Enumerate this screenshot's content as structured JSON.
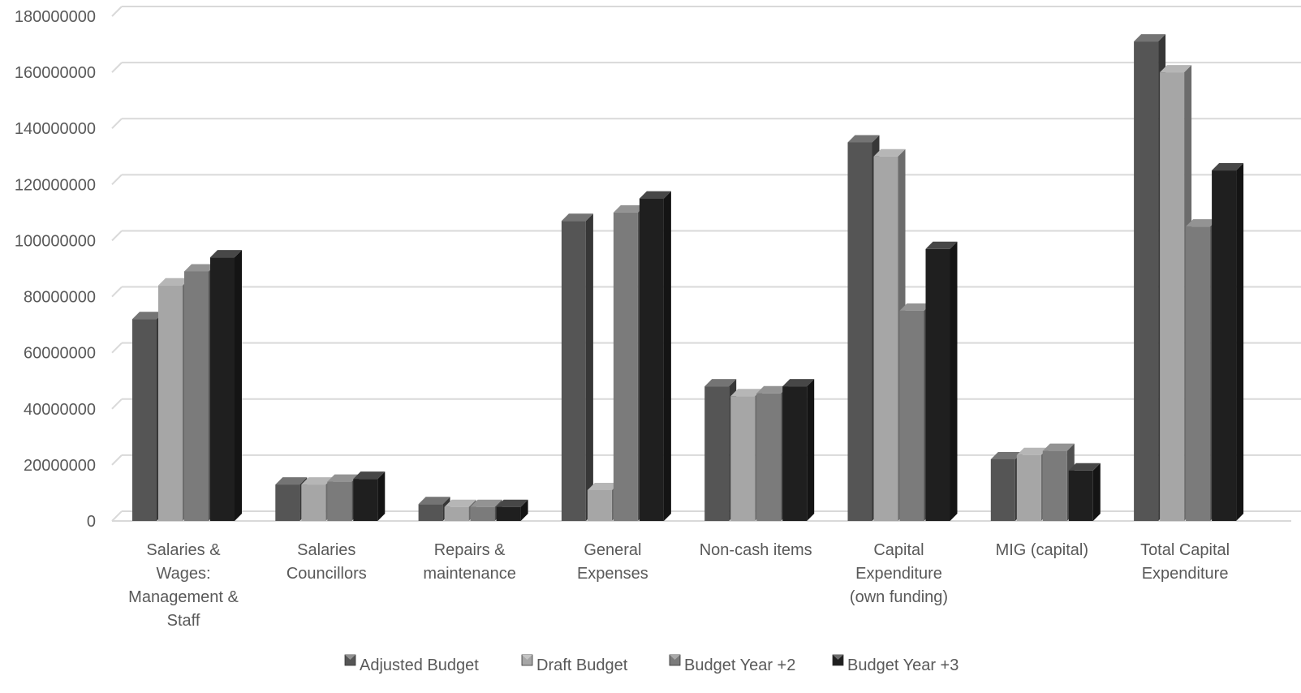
{
  "chart_data": {
    "type": "bar",
    "title": "",
    "xlabel": "",
    "ylabel": "",
    "ylim": [
      0,
      180000000
    ],
    "y_ticks": [
      "0",
      "20000000",
      "40000000",
      "60000000",
      "80000000",
      "100000000",
      "120000000",
      "140000000",
      "160000000",
      "180000000"
    ],
    "y_tick_values": [
      0,
      20000000,
      40000000,
      60000000,
      80000000,
      100000000,
      120000000,
      140000000,
      160000000,
      180000000
    ],
    "grid": true,
    "style": "3d-clustered-column",
    "legend_position": "bottom",
    "categories": [
      "Salaries & Wages: Management & Staff",
      "Salaries Councillors",
      "Repairs & maintenance",
      "General Expenses",
      "Non-cash items",
      "Capital Expenditure (own funding)",
      "MIG (capital)",
      "Total Capital Expenditure"
    ],
    "category_lines": [
      [
        "Salaries &",
        "Wages:",
        "Management &",
        "Staff"
      ],
      [
        "Salaries",
        "Councillors"
      ],
      [
        "Repairs &",
        "maintenance"
      ],
      [
        "General",
        "Expenses"
      ],
      [
        "Non-cash items"
      ],
      [
        "Capital",
        "Expenditure",
        "(own funding)"
      ],
      [
        "MIG (capital)"
      ],
      [
        "Total Capital",
        "Expenditure"
      ]
    ],
    "series": [
      {
        "name": "Adjusted Budget",
        "color": "#555555",
        "values": [
          72000000,
          13000000,
          6000000,
          107000000,
          48000000,
          135000000,
          22000000,
          171000000
        ]
      },
      {
        "name": "Draft Budget",
        "color": "#a6a6a6",
        "values": [
          84000000,
          13000000,
          5000000,
          11000000,
          44500000,
          130000000,
          23500000,
          160000000
        ]
      },
      {
        "name": "Budget Year +2",
        "color": "#7b7b7b",
        "values": [
          89000000,
          14000000,
          5000000,
          110000000,
          45500000,
          75000000,
          25000000,
          105000000
        ]
      },
      {
        "name": "Budget Year +3",
        "color": "#1f1f1f",
        "values": [
          94000000,
          15000000,
          5000000,
          115000000,
          48000000,
          97000000,
          18000000,
          125000000
        ]
      }
    ]
  }
}
